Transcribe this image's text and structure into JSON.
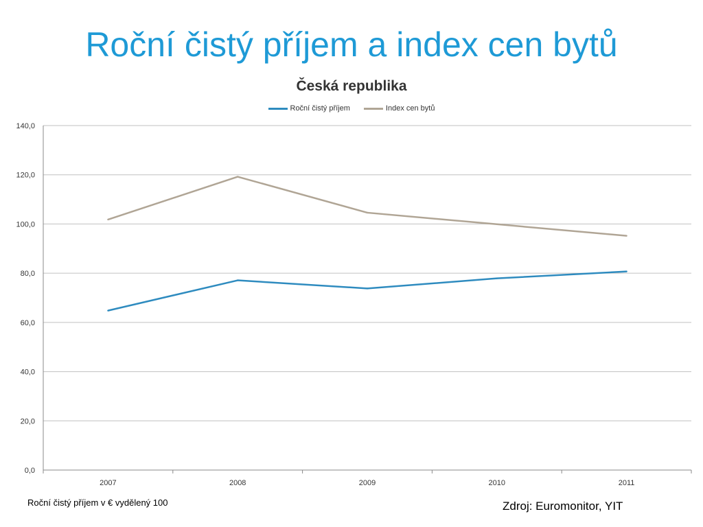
{
  "slide": {
    "title": "Roční čistý příjem a index cen bytů",
    "footnote": "Roční čistý příjem v € vydělený 100",
    "source": "Zdroj: Euromonitor, YIT"
  },
  "chart_data": {
    "type": "line",
    "title": "Česká republika",
    "categories": [
      "2007",
      "2008",
      "2009",
      "2010",
      "2011"
    ],
    "series": [
      {
        "name": "Roční čistý příjem",
        "color": "#2e8bbf",
        "values": [
          64.8,
          77.1,
          73.8,
          77.9,
          80.7
        ]
      },
      {
        "name": "Index cen bytů",
        "color": "#b0a595",
        "values": [
          101.8,
          119.2,
          104.6,
          99.9,
          95.2
        ]
      }
    ],
    "ylim": [
      0,
      140
    ],
    "yticks": [
      "0,0",
      "20,0",
      "40,0",
      "60,0",
      "80,0",
      "100,0",
      "120,0",
      "140,0"
    ],
    "grid": true,
    "legend_position": "top"
  }
}
